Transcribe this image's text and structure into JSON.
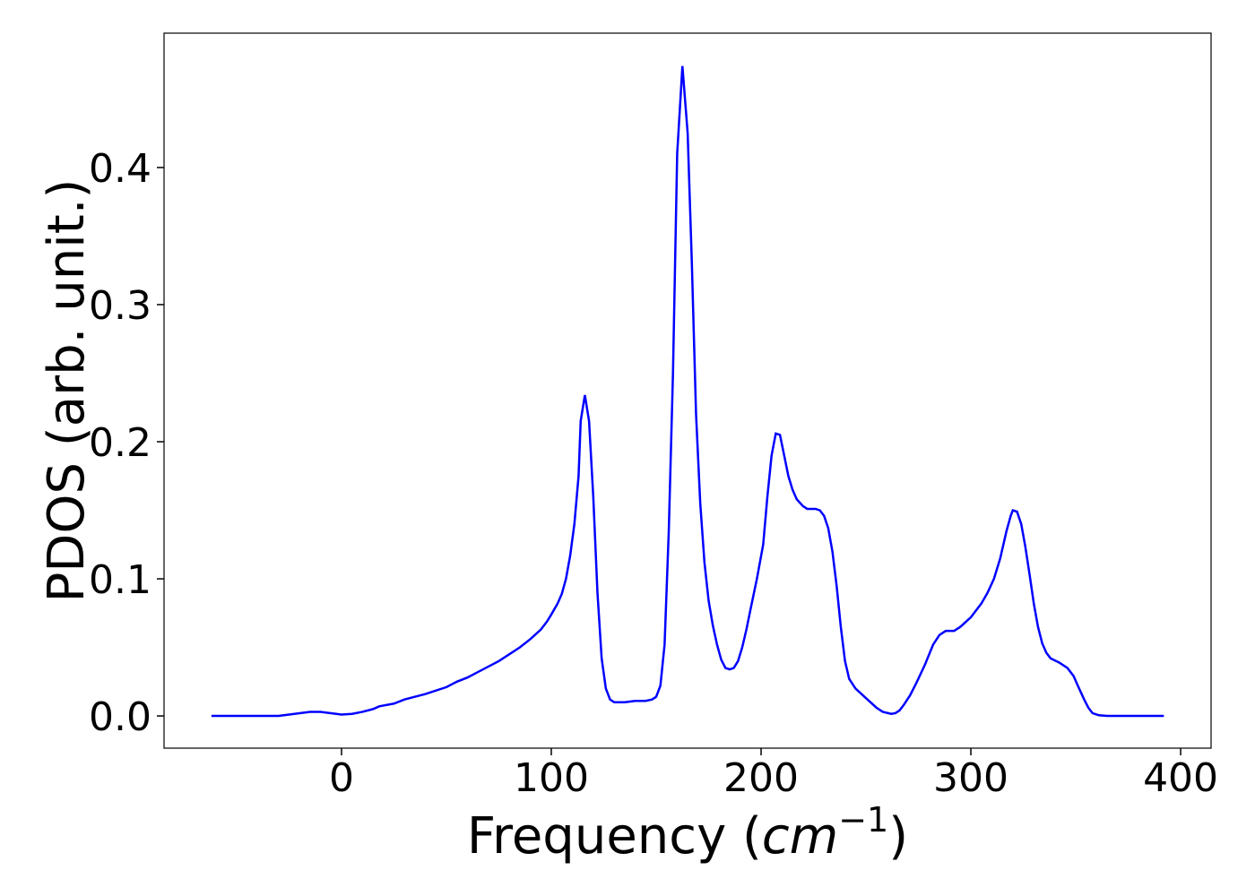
{
  "chart_data": {
    "type": "line",
    "x_label": [
      "Frequency (",
      "cm",
      "−1",
      ")"
    ],
    "y_label": "PDOS (arb. unit.)",
    "xlim": [
      -84.6,
      414.5
    ],
    "ylim": [
      -0.0235,
      0.498
    ],
    "xticks": [
      0,
      100,
      200,
      300,
      400
    ],
    "yticks": [
      {
        "value": 0,
        "label": "0.0"
      },
      0.1,
      0.2,
      0.3,
      0.4
    ],
    "x": [
      -62,
      -30,
      -25,
      -15,
      -10,
      -5,
      0,
      5,
      10,
      15,
      18,
      25,
      30,
      40,
      50,
      55,
      60,
      65,
      70,
      75,
      80,
      85,
      90,
      95,
      98,
      100,
      103,
      105,
      107,
      109,
      111,
      113,
      114,
      116,
      118,
      120,
      122,
      124,
      126,
      128,
      130,
      135,
      140,
      145,
      148,
      150,
      152,
      154,
      156,
      158,
      160,
      162.5,
      165,
      167,
      169,
      171,
      173,
      175,
      177,
      179,
      181,
      183,
      185,
      187,
      189,
      191,
      193,
      195,
      198,
      201,
      203,
      205,
      207,
      209,
      211,
      213,
      215,
      217,
      220,
      222,
      226,
      228,
      230,
      232,
      234,
      236,
      238,
      240,
      242,
      245,
      250,
      255,
      258,
      262,
      264,
      266,
      268,
      271,
      274,
      278,
      282,
      285,
      288,
      292,
      295,
      300,
      305,
      308,
      311,
      314,
      317,
      319,
      320,
      322,
      324,
      326,
      328,
      330,
      332,
      334,
      336,
      338,
      342,
      346,
      349,
      351,
      354,
      356,
      358,
      361,
      365,
      392
    ],
    "series": [
      {
        "name": "PDOS",
        "color": "#0000ff",
        "values": [
          0,
          0,
          0.001,
          0.003,
          0.003,
          0.002,
          0.001,
          0.0015,
          0.003,
          0.005,
          0.007,
          0.009,
          0.012,
          0.016,
          0.021,
          0.025,
          0.028,
          0.032,
          0.036,
          0.04,
          0.045,
          0.05,
          0.056,
          0.063,
          0.069,
          0.074,
          0.082,
          0.089,
          0.1,
          0.117,
          0.14,
          0.175,
          0.215,
          0.234,
          0.215,
          0.16,
          0.09,
          0.042,
          0.02,
          0.012,
          0.01,
          0.01,
          0.011,
          0.011,
          0.012,
          0.014,
          0.022,
          0.052,
          0.135,
          0.25,
          0.41,
          0.474,
          0.425,
          0.33,
          0.22,
          0.155,
          0.112,
          0.084,
          0.066,
          0.052,
          0.041,
          0.035,
          0.034,
          0.035,
          0.04,
          0.05,
          0.063,
          0.078,
          0.1,
          0.125,
          0.16,
          0.19,
          0.206,
          0.205,
          0.19,
          0.175,
          0.165,
          0.158,
          0.153,
          0.151,
          0.151,
          0.15,
          0.146,
          0.137,
          0.12,
          0.095,
          0.065,
          0.04,
          0.027,
          0.02,
          0.013,
          0.006,
          0.003,
          0.0015,
          0.002,
          0.004,
          0.008,
          0.015,
          0.024,
          0.037,
          0.052,
          0.059,
          0.062,
          0.062,
          0.065,
          0.072,
          0.082,
          0.09,
          0.1,
          0.115,
          0.135,
          0.146,
          0.15,
          0.149,
          0.14,
          0.123,
          0.103,
          0.082,
          0.065,
          0.053,
          0.046,
          0.042,
          0.039,
          0.035,
          0.029,
          0.022,
          0.012,
          0.006,
          0.002,
          0.0005,
          0,
          0
        ]
      }
    ]
  }
}
